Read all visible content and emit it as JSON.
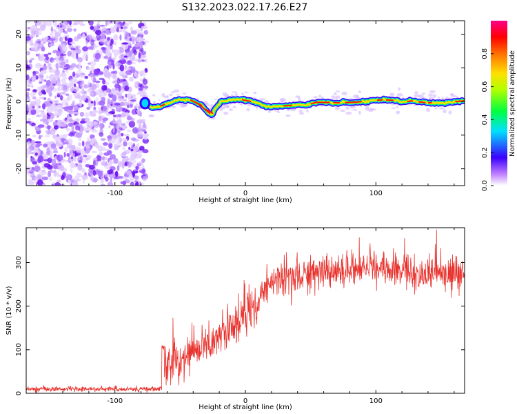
{
  "title": "S132.2023.022.17.26.E27",
  "chart_data": [
    {
      "type": "heatmap",
      "xlabel": "Height of straight line (km)",
      "ylabel": "Frequency (Hz)",
      "xlim": [
        -168,
        168
      ],
      "ylim": [
        -25,
        24
      ],
      "x_ticks": [
        -100,
        0,
        100
      ],
      "y_ticks": [
        -20,
        -10,
        0,
        10,
        20
      ],
      "noise_region_x": [
        -168,
        -78
      ],
      "ridge": {
        "x": [
          -77,
          -72,
          -66,
          -60,
          -54,
          -48,
          -42,
          -38,
          -34,
          -30,
          -26,
          -22,
          -18,
          -12,
          -6,
          0,
          8,
          16,
          24,
          32,
          40,
          48,
          56,
          64,
          72,
          80,
          88,
          96,
          104,
          112,
          120,
          128,
          136,
          144,
          152,
          160,
          166
        ],
        "y": [
          -0.5,
          -1.8,
          -1.5,
          -0.6,
          0.2,
          0.6,
          0.4,
          -0.3,
          -1.0,
          -2.5,
          -4.0,
          -1.5,
          0.0,
          0.5,
          0.6,
          0.4,
          -0.3,
          -1.5,
          -1.5,
          -1.2,
          -1.2,
          -0.9,
          -0.1,
          -0.3,
          -0.4,
          -0.3,
          -0.1,
          0.2,
          0.5,
          0.4,
          -0.2,
          0.2,
          -0.3,
          -0.4,
          -0.5,
          -0.1,
          0.2
        ]
      },
      "colorbar": {
        "label": "Normalized spectral amplitude",
        "range": [
          0.0,
          1.0
        ],
        "ticks": [
          0.0,
          0.2,
          0.4,
          0.6,
          0.8
        ]
      }
    },
    {
      "type": "line",
      "xlabel": "Height of straight line (km)",
      "ylabel": "SNR (10 * v/v)",
      "xlim": [
        -168,
        168
      ],
      "ylim": [
        0,
        380
      ],
      "x_ticks": [
        -100,
        0,
        100
      ],
      "y_ticks": [
        0,
        100,
        200,
        300
      ],
      "color": "#e8322d",
      "trend": {
        "x": [
          -168,
          -64,
          -62,
          -50,
          -40,
          -30,
          -20,
          -10,
          0,
          10,
          20,
          30,
          40,
          60,
          80,
          100,
          120,
          140,
          168
        ],
        "y": [
          10,
          10,
          60,
          70,
          95,
          110,
          130,
          150,
          175,
          215,
          255,
          265,
          270,
          275,
          285,
          290,
          280,
          275,
          270
        ]
      }
    }
  ]
}
